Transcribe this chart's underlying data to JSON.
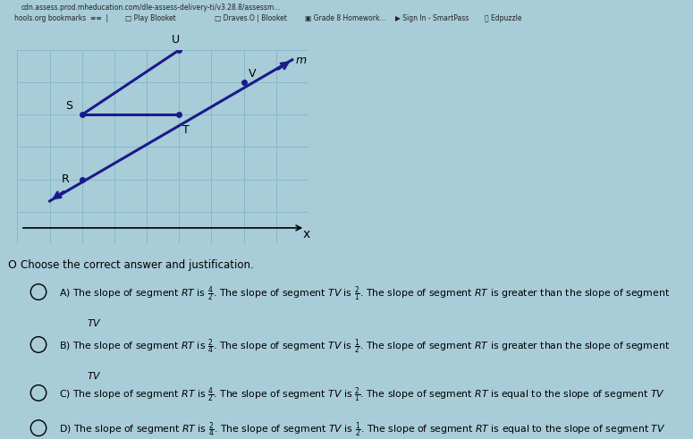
{
  "bg_color": "#a8ccd8",
  "graph_bg": "#b0d0dc",
  "grid_color": "#8ab8c8",
  "border_color": "#000000",
  "line_color": "#1a1a8c",
  "grid_rows": 6,
  "grid_cols": 9,
  "R": [
    2,
    2
  ],
  "S": [
    2,
    4
  ],
  "T": [
    5,
    4
  ],
  "U": [
    5,
    6
  ],
  "V": [
    7,
    5
  ],
  "choose_text": "Choose the correct answer and justification.",
  "origin_label": "O",
  "x_label": "x",
  "m_label": "m",
  "navbar_url": "cdn.assess.prod.mheducation.com/dle-assess-delivery-ti/v3.28.8/assessm...",
  "navbar_bookmarks": "hools.org bookmarks",
  "nav_items": [
    "Play Blooket",
    "Draves.O | Blooket",
    "Grade 8 Homework...",
    "Sign In - SmartPass",
    "Edpuzzle"
  ],
  "answer_options": [
    {
      "label": "A)",
      "frac1_num": "4",
      "frac1_den": "2",
      "frac2_num": "2",
      "frac2_den": "1",
      "conclusion": "greater than",
      "wrap": true
    },
    {
      "label": "B)",
      "frac1_num": "2",
      "frac1_den": "4",
      "frac2_num": "1",
      "frac2_den": "2",
      "conclusion": "greater than",
      "wrap": true
    },
    {
      "label": "C)",
      "frac1_num": "4",
      "frac1_den": "2",
      "frac2_num": "2",
      "frac2_den": "1",
      "conclusion": "equal to",
      "wrap": false
    },
    {
      "label": "D)",
      "frac1_num": "2",
      "frac1_den": "4",
      "frac2_num": "1",
      "frac2_den": "2",
      "conclusion": "equal to",
      "wrap": false
    }
  ]
}
